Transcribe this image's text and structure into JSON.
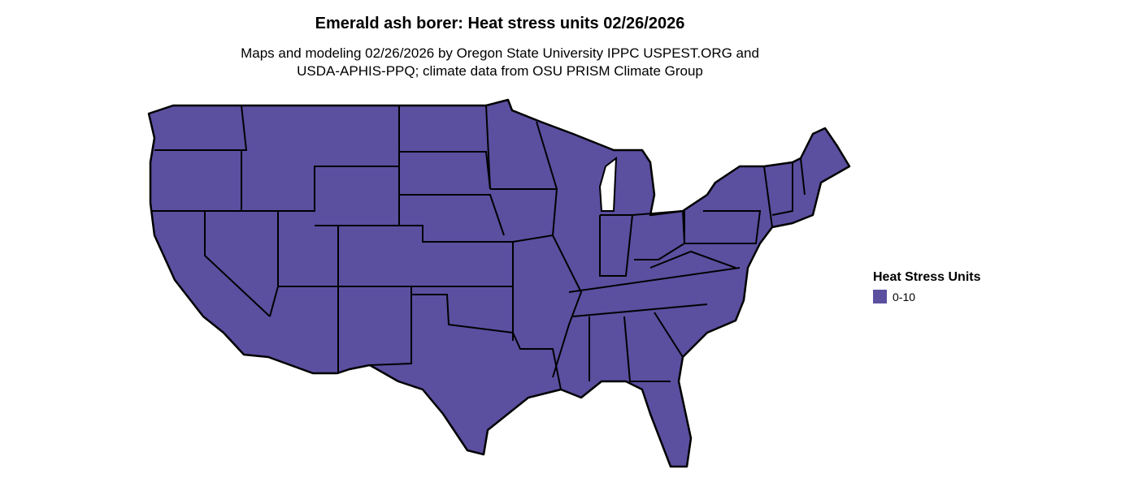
{
  "title": "Emerald ash borer: Heat stress units 02/26/2026",
  "subtitle_line1": "Maps and modeling 02/26/2026 by Oregon State University IPPC USPEST.ORG and",
  "subtitle_line2": "USDA-APHIS-PPQ; climate data from OSU PRISM Climate Group",
  "map": {
    "region": "Contiguous United States",
    "fill_color": "#5b4fa0",
    "border_color": "#000000"
  },
  "legend": {
    "title": "Heat Stress Units",
    "items": [
      {
        "label": "0-10",
        "color": "#5b4fa0"
      }
    ]
  }
}
